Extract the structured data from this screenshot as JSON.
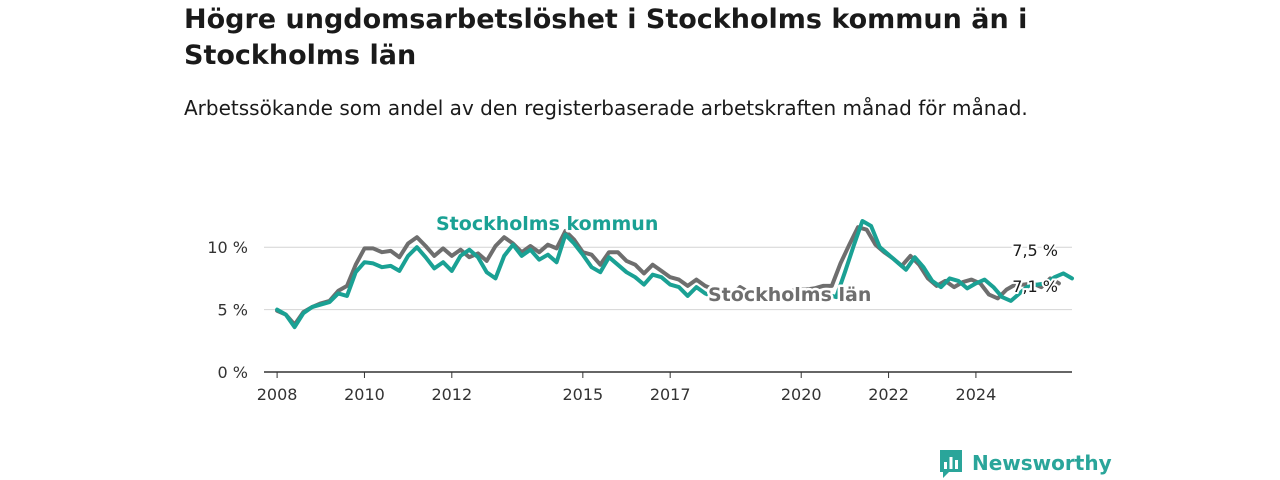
{
  "header": {
    "title": "Högre ungdomsarbetslöshet i Stockholms kommun än i Stockholms län",
    "subtitle": "Arbetssökande som andel av den registerbaserade arbetskraften månad för månad."
  },
  "brand": {
    "name": "Newsworthy",
    "color": "#2aa59a",
    "icon": "newsworthy-chart-bubble-icon"
  },
  "chart_data": {
    "type": "line",
    "ylim": [
      0,
      12.5
    ],
    "y_ticks": [
      0,
      5,
      10
    ],
    "y_tick_labels": [
      "0 %",
      "5 %",
      "10 %"
    ],
    "x_range": [
      2007.7,
      2026.2
    ],
    "x_ticks": [
      2008,
      2010,
      2012,
      2015,
      2017,
      2020,
      2022,
      2024
    ],
    "x_tick_labels": [
      "2008",
      "2010",
      "2012",
      "2015",
      "2017",
      "2020",
      "2022",
      "2024"
    ],
    "grid": true,
    "series": [
      {
        "name": "Stockholms län",
        "color": "#6e6e6e",
        "label_position": "bottom-middle",
        "end_label": "7,1 %",
        "points": [
          [
            2008.0,
            4.9
          ],
          [
            2008.2,
            4.6
          ],
          [
            2008.4,
            3.8
          ],
          [
            2008.6,
            4.8
          ],
          [
            2008.8,
            5.2
          ],
          [
            2009.0,
            5.5
          ],
          [
            2009.2,
            5.7
          ],
          [
            2009.4,
            6.5
          ],
          [
            2009.6,
            6.9
          ],
          [
            2009.8,
            8.6
          ],
          [
            2010.0,
            9.9
          ],
          [
            2010.2,
            9.9
          ],
          [
            2010.4,
            9.6
          ],
          [
            2010.6,
            9.7
          ],
          [
            2010.8,
            9.2
          ],
          [
            2011.0,
            10.3
          ],
          [
            2011.2,
            10.8
          ],
          [
            2011.4,
            10.1
          ],
          [
            2011.6,
            9.3
          ],
          [
            2011.8,
            9.9
          ],
          [
            2012.0,
            9.3
          ],
          [
            2012.2,
            9.8
          ],
          [
            2012.4,
            9.2
          ],
          [
            2012.6,
            9.5
          ],
          [
            2012.8,
            8.9
          ],
          [
            2013.0,
            10.1
          ],
          [
            2013.2,
            10.8
          ],
          [
            2013.4,
            10.3
          ],
          [
            2013.6,
            9.6
          ],
          [
            2013.8,
            10.1
          ],
          [
            2014.0,
            9.6
          ],
          [
            2014.2,
            10.2
          ],
          [
            2014.4,
            9.9
          ],
          [
            2014.6,
            11.3
          ],
          [
            2014.8,
            10.6
          ],
          [
            2015.0,
            9.6
          ],
          [
            2015.2,
            9.4
          ],
          [
            2015.4,
            8.6
          ],
          [
            2015.6,
            9.6
          ],
          [
            2015.8,
            9.6
          ],
          [
            2016.0,
            8.9
          ],
          [
            2016.2,
            8.6
          ],
          [
            2016.4,
            7.9
          ],
          [
            2016.6,
            8.6
          ],
          [
            2016.8,
            8.1
          ],
          [
            2017.0,
            7.6
          ],
          [
            2017.2,
            7.4
          ],
          [
            2017.4,
            6.9
          ],
          [
            2017.6,
            7.4
          ],
          [
            2017.8,
            6.9
          ],
          [
            2018.0,
            6.6
          ],
          [
            2018.2,
            6.4
          ],
          [
            2018.4,
            6.1
          ],
          [
            2018.6,
            6.8
          ],
          [
            2018.8,
            6.4
          ]
        ],
        "points_b": [
          [
            2019.7,
            6.4
          ],
          [
            2019.9,
            6.6
          ],
          [
            2020.1,
            6.6
          ],
          [
            2020.3,
            6.7
          ],
          [
            2020.5,
            6.9
          ],
          [
            2020.7,
            6.9
          ],
          [
            2020.9,
            8.7
          ],
          [
            2021.1,
            10.2
          ],
          [
            2021.3,
            11.6
          ],
          [
            2021.5,
            11.4
          ],
          [
            2021.7,
            10.2
          ],
          [
            2021.9,
            9.6
          ],
          [
            2022.1,
            9.1
          ],
          [
            2022.3,
            8.5
          ],
          [
            2022.5,
            9.3
          ],
          [
            2022.7,
            8.6
          ],
          [
            2022.9,
            7.5
          ],
          [
            2023.1,
            6.9
          ],
          [
            2023.3,
            7.3
          ],
          [
            2023.5,
            6.8
          ],
          [
            2023.7,
            7.2
          ],
          [
            2023.9,
            7.4
          ],
          [
            2024.1,
            7.1
          ],
          [
            2024.3,
            6.2
          ],
          [
            2024.5,
            5.9
          ],
          [
            2024.7,
            6.6
          ],
          [
            2024.9,
            7.0
          ],
          [
            2025.1,
            7.0
          ],
          [
            2025.3,
            7.1
          ],
          [
            2025.5,
            6.8
          ],
          [
            2025.7,
            7.5
          ],
          [
            2025.9,
            7.1
          ]
        ]
      },
      {
        "name": "Stockholms kommun",
        "color": "#1aa194",
        "label_position": "top-left",
        "end_label": "7,5 %",
        "points": [
          [
            2008.0,
            5.0
          ],
          [
            2008.2,
            4.6
          ],
          [
            2008.4,
            3.6
          ],
          [
            2008.6,
            4.7
          ],
          [
            2008.8,
            5.2
          ],
          [
            2009.0,
            5.4
          ],
          [
            2009.2,
            5.6
          ],
          [
            2009.4,
            6.3
          ],
          [
            2009.6,
            6.1
          ],
          [
            2009.8,
            8.0
          ],
          [
            2010.0,
            8.8
          ],
          [
            2010.2,
            8.7
          ],
          [
            2010.4,
            8.4
          ],
          [
            2010.6,
            8.5
          ],
          [
            2010.8,
            8.1
          ],
          [
            2011.0,
            9.3
          ],
          [
            2011.2,
            10.0
          ],
          [
            2011.4,
            9.2
          ],
          [
            2011.6,
            8.3
          ],
          [
            2011.8,
            8.8
          ],
          [
            2012.0,
            8.1
          ],
          [
            2012.2,
            9.3
          ],
          [
            2012.4,
            9.8
          ],
          [
            2012.6,
            9.2
          ],
          [
            2012.8,
            8.0
          ],
          [
            2013.0,
            7.5
          ],
          [
            2013.2,
            9.3
          ],
          [
            2013.4,
            10.2
          ],
          [
            2013.6,
            9.3
          ],
          [
            2013.8,
            9.8
          ],
          [
            2014.0,
            9.0
          ],
          [
            2014.2,
            9.4
          ],
          [
            2014.4,
            8.8
          ],
          [
            2014.6,
            11.0
          ],
          [
            2014.8,
            10.3
          ],
          [
            2015.0,
            9.4
          ],
          [
            2015.2,
            8.4
          ],
          [
            2015.4,
            8.0
          ],
          [
            2015.6,
            9.2
          ],
          [
            2015.8,
            8.6
          ],
          [
            2016.0,
            8.0
          ],
          [
            2016.2,
            7.6
          ],
          [
            2016.4,
            7.0
          ],
          [
            2016.6,
            7.8
          ],
          [
            2016.8,
            7.6
          ],
          [
            2017.0,
            7.0
          ],
          [
            2017.2,
            6.8
          ],
          [
            2017.4,
            6.1
          ],
          [
            2017.6,
            6.8
          ],
          [
            2017.8,
            6.3
          ],
          [
            2018.0,
            6.0
          ],
          [
            2018.2,
            5.9
          ]
        ],
        "points_b": [
          [
            2020.4,
            6.0
          ],
          [
            2020.6,
            6.2
          ],
          [
            2020.8,
            6.0
          ],
          [
            2021.0,
            8.0
          ],
          [
            2021.2,
            10.1
          ],
          [
            2021.4,
            12.1
          ],
          [
            2021.6,
            11.7
          ],
          [
            2021.8,
            10.0
          ],
          [
            2022.0,
            9.4
          ],
          [
            2022.2,
            8.8
          ],
          [
            2022.4,
            8.2
          ],
          [
            2022.6,
            9.2
          ],
          [
            2022.8,
            8.4
          ],
          [
            2023.0,
            7.3
          ],
          [
            2023.2,
            6.8
          ],
          [
            2023.4,
            7.5
          ],
          [
            2023.6,
            7.3
          ],
          [
            2023.8,
            6.7
          ],
          [
            2024.0,
            7.1
          ],
          [
            2024.2,
            7.4
          ],
          [
            2024.4,
            6.8
          ],
          [
            2024.6,
            6.0
          ],
          [
            2024.8,
            5.7
          ],
          [
            2025.0,
            6.3
          ],
          [
            2025.2,
            6.9
          ],
          [
            2025.4,
            7.0
          ],
          [
            2025.6,
            7.1
          ],
          [
            2025.8,
            7.6
          ],
          [
            2026.0,
            7.9
          ],
          [
            2026.2,
            7.5
          ]
        ]
      }
    ]
  }
}
